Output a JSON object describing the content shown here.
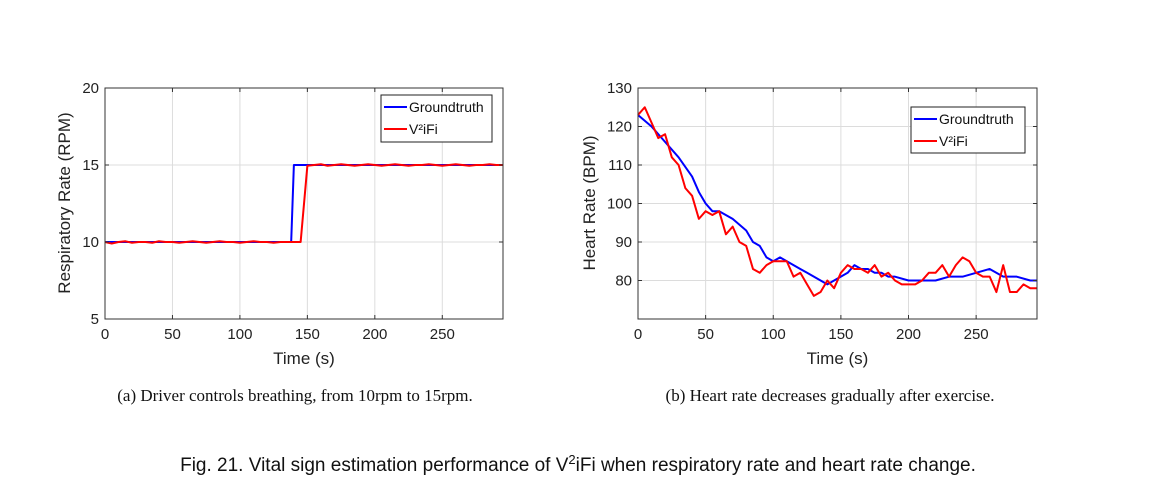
{
  "chart_data": [
    {
      "type": "line",
      "xlabel": "Time (s)",
      "ylabel": "Respiratory Rate (RPM)",
      "xlim": [
        0,
        295
      ],
      "ylim": [
        5,
        20
      ],
      "xticks": [
        "0",
        "50",
        "100",
        "150",
        "200",
        "250"
      ],
      "yticks": [
        "5",
        "10",
        "15",
        "20"
      ],
      "grid": true,
      "legend_position": "top-right",
      "caption": "(a) Driver controls breathing, from 10rpm to 15rpm.",
      "series": [
        {
          "name": "Groundtruth",
          "color": "#0000ff",
          "x": [
            0,
            138,
            140,
            295
          ],
          "y": [
            10,
            10,
            15,
            15
          ]
        },
        {
          "name": "V²iFi",
          "color": "#ff0000",
          "x": [
            0,
            5,
            10,
            15,
            20,
            25,
            30,
            35,
            40,
            45,
            50,
            55,
            60,
            65,
            70,
            75,
            80,
            85,
            90,
            95,
            100,
            105,
            110,
            115,
            120,
            125,
            130,
            135,
            140,
            145,
            150,
            155,
            160,
            165,
            170,
            175,
            180,
            185,
            190,
            195,
            200,
            205,
            210,
            215,
            220,
            225,
            230,
            235,
            240,
            245,
            250,
            255,
            260,
            265,
            270,
            275,
            280,
            285,
            290,
            295
          ],
          "y": [
            10,
            9.9,
            10,
            10.05,
            9.95,
            10,
            10,
            9.95,
            10.05,
            10,
            10,
            9.95,
            10,
            10.05,
            10,
            9.95,
            10,
            10.05,
            10,
            10,
            9.95,
            10,
            10.05,
            10,
            10,
            9.95,
            10,
            10,
            10,
            10,
            14.95,
            15,
            15.05,
            14.95,
            15,
            15.05,
            15,
            14.95,
            15,
            15.05,
            15,
            14.95,
            15,
            15.05,
            15,
            14.95,
            15,
            15,
            15.05,
            15,
            14.95,
            15,
            15.05,
            15,
            14.95,
            15,
            15,
            15.05,
            15,
            15
          ]
        }
      ]
    },
    {
      "type": "line",
      "xlabel": "Time (s)",
      "ylabel": "Heart Rate (BPM)",
      "xlim": [
        0,
        295
      ],
      "ylim": [
        70,
        130
      ],
      "xticks": [
        "0",
        "50",
        "100",
        "150",
        "200",
        "250"
      ],
      "yticks": [
        "80",
        "90",
        "100",
        "110",
        "120",
        "130"
      ],
      "grid": true,
      "legend_position": "top-right",
      "caption": "(b) Heart rate decreases gradually after exercise.",
      "series": [
        {
          "name": "Groundtruth",
          "color": "#0000ff",
          "x": [
            0,
            10,
            20,
            30,
            40,
            45,
            50,
            55,
            60,
            70,
            80,
            85,
            90,
            95,
            100,
            105,
            110,
            115,
            120,
            125,
            130,
            135,
            140,
            145,
            150,
            155,
            160,
            165,
            170,
            175,
            180,
            185,
            190,
            200,
            210,
            220,
            230,
            240,
            250,
            260,
            270,
            280,
            290,
            295
          ],
          "y": [
            123,
            120,
            116,
            112,
            107,
            103,
            100,
            98,
            98,
            96,
            93,
            90,
            89,
            86,
            85,
            86,
            85,
            84,
            83,
            82,
            81,
            80,
            79,
            80,
            81,
            82,
            84,
            83,
            83,
            82,
            82,
            81,
            81,
            80,
            80,
            80,
            81,
            81,
            82,
            83,
            81,
            81,
            80,
            80
          ]
        },
        {
          "name": "V²iFi",
          "color": "#ff0000",
          "x": [
            0,
            5,
            10,
            15,
            20,
            25,
            30,
            35,
            40,
            45,
            50,
            55,
            60,
            65,
            70,
            75,
            80,
            85,
            90,
            95,
            100,
            105,
            110,
            115,
            120,
            125,
            130,
            135,
            140,
            145,
            150,
            155,
            160,
            165,
            170,
            175,
            180,
            185,
            190,
            195,
            200,
            205,
            210,
            215,
            220,
            225,
            230,
            235,
            240,
            245,
            250,
            255,
            260,
            265,
            270,
            275,
            280,
            285,
            290,
            295
          ],
          "y": [
            123,
            125,
            121,
            117,
            118,
            112,
            110,
            104,
            102,
            96,
            98,
            97,
            98,
            92,
            94,
            90,
            89,
            83,
            82,
            84,
            85,
            85,
            85,
            81,
            82,
            79,
            76,
            77,
            80,
            78,
            82,
            84,
            83,
            83,
            82,
            84,
            81,
            82,
            80,
            79,
            79,
            79,
            80,
            82,
            82,
            84,
            81,
            84,
            86,
            85,
            82,
            81,
            81,
            77,
            84,
            77,
            77,
            79,
            78,
            78
          ]
        }
      ]
    }
  ],
  "figure": {
    "caption_prefix": "Fig. 21.  Vital sign estimation performance of V",
    "caption_superscript": "2",
    "caption_suffix": "iFi when respiratory rate and heart rate change."
  }
}
